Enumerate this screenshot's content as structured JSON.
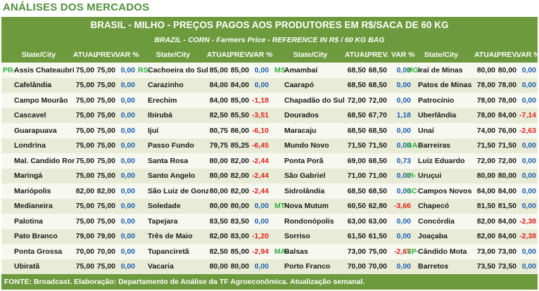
{
  "section_title": "ANÁLISES DOS MERCADOS",
  "title": "BRASIL - MILHO - PREÇOS PAGOS AOS PRODUTORES EM R$/SACA DE 60 KG",
  "subtitle": "BRAZIL - CORN - Farmers Price - REFERENCE IN R$ / 60 KG BAG",
  "headers": {
    "state_city": "State/City",
    "atual": "ATUAL",
    "prev": "PREV.",
    "var": "VAR %"
  },
  "colors": {
    "band": "#6c9a3c",
    "prefix": "#2fae3c",
    "positive": "#1f5fb0",
    "negative": "#e0211b"
  },
  "groups": [
    {
      "rows": [
        {
          "prefix": "PR-",
          "city": "Assis Chateaubriand",
          "atual": "75,00",
          "prev": "75,00",
          "var": "0,00"
        },
        {
          "prefix": "",
          "city": "Cafelândia",
          "atual": "75,00",
          "prev": "75,00",
          "var": "0,00"
        },
        {
          "prefix": "",
          "city": "Campo Mourão",
          "atual": "75,00",
          "prev": "75,00",
          "var": "0,00"
        },
        {
          "prefix": "",
          "city": "Cascavel",
          "atual": "75,00",
          "prev": "75,00",
          "var": "0,00"
        },
        {
          "prefix": "",
          "city": "Guarapuava",
          "atual": "75,00",
          "prev": "75,00",
          "var": "0,00"
        },
        {
          "prefix": "",
          "city": "Londrina",
          "atual": "75,00",
          "prev": "75,00",
          "var": "0,00"
        },
        {
          "prefix": "",
          "city": "Mal. Candido Rondon",
          "atual": "75,00",
          "prev": "75,00",
          "var": "0,00"
        },
        {
          "prefix": "",
          "city": "Maringá",
          "atual": "75,00",
          "prev": "75,00",
          "var": "0,00"
        },
        {
          "prefix": "",
          "city": "Mariópolis",
          "atual": "82,00",
          "prev": "82,00",
          "var": "0,00"
        },
        {
          "prefix": "",
          "city": "Medianeira",
          "atual": "75,00",
          "prev": "75,00",
          "var": "0,00"
        },
        {
          "prefix": "",
          "city": "Palotina",
          "atual": "75,00",
          "prev": "75,00",
          "var": "0,00"
        },
        {
          "prefix": "",
          "city": "Pato Branco",
          "atual": "79,00",
          "prev": "79,00",
          "var": "0,00"
        },
        {
          "prefix": "",
          "city": "Ponta Grossa",
          "atual": "70,00",
          "prev": "70,00",
          "var": "0,00"
        },
        {
          "prefix": "",
          "city": "Ubiratã",
          "atual": "75,00",
          "prev": "75,00",
          "var": "0,00"
        }
      ]
    },
    {
      "rows": [
        {
          "prefix": "RS-",
          "city": "Cachoeira do Sul",
          "atual": "85,00",
          "prev": "85,00",
          "var": "0,00"
        },
        {
          "prefix": "",
          "city": "Carazinho",
          "atual": "84,00",
          "prev": "84,00",
          "var": "0,00"
        },
        {
          "prefix": "",
          "city": "Erechim",
          "atual": "84,00",
          "prev": "85,00",
          "var": "-1,18"
        },
        {
          "prefix": "",
          "city": "Ibirubá",
          "atual": "82,50",
          "prev": "85,50",
          "var": "-3,51"
        },
        {
          "prefix": "",
          "city": "Ijuí",
          "atual": "80,75",
          "prev": "86,00",
          "var": "-6,10"
        },
        {
          "prefix": "",
          "city": "Passo Fundo",
          "atual": "79,75",
          "prev": "85,25",
          "var": "-6,45"
        },
        {
          "prefix": "",
          "city": "Santa Rosa",
          "atual": "80,00",
          "prev": "82,00",
          "var": "-2,44"
        },
        {
          "prefix": "",
          "city": "Santo Angelo",
          "atual": "80,00",
          "prev": "82,00",
          "var": "-2,44"
        },
        {
          "prefix": "",
          "city": "São Luiz de Gonzaga",
          "atual": "80,00",
          "prev": "82,00",
          "var": "-2,44"
        },
        {
          "prefix": "",
          "city": "Soledade",
          "atual": "80,00",
          "prev": "80,00",
          "var": "0,00"
        },
        {
          "prefix": "",
          "city": "Tapejara",
          "atual": "83,50",
          "prev": "83,50",
          "var": "0,00"
        },
        {
          "prefix": "",
          "city": "Três de Maio",
          "atual": "82,00",
          "prev": "83,00",
          "var": "-1,20"
        },
        {
          "prefix": "",
          "city": "Tupanciretã",
          "atual": "82,50",
          "prev": "85,00",
          "var": "-2,94"
        },
        {
          "prefix": "",
          "city": "Vacaria",
          "atual": "80,00",
          "prev": "80,00",
          "var": "0,00"
        }
      ]
    },
    {
      "rows": [
        {
          "prefix": "MS-",
          "city": "Amambaí",
          "atual": "68,50",
          "prev": "68,50",
          "var": "0,00"
        },
        {
          "prefix": "",
          "city": "Caarapó",
          "atual": "68,50",
          "prev": "68,50",
          "var": "0,00"
        },
        {
          "prefix": "",
          "city": "Chapadão do Sul",
          "atual": "72,00",
          "prev": "72,00",
          "var": "0,00"
        },
        {
          "prefix": "",
          "city": "Dourados",
          "atual": "68,50",
          "prev": "67,70",
          "var": "1,18"
        },
        {
          "prefix": "",
          "city": "Maracaju",
          "atual": "68,50",
          "prev": "68,50",
          "var": "0,00"
        },
        {
          "prefix": "",
          "city": "Mundo Novo",
          "atual": "71,50",
          "prev": "71,50",
          "var": "0,00"
        },
        {
          "prefix": "",
          "city": "Ponta Porã",
          "atual": "69,00",
          "prev": "68,50",
          "var": "0,73"
        },
        {
          "prefix": "",
          "city": "São Gabriel",
          "atual": "71,00",
          "prev": "71,00",
          "var": "0,00"
        },
        {
          "prefix": "",
          "city": "Sidrolândia",
          "atual": "68,50",
          "prev": "68,50",
          "var": "0,00"
        },
        {
          "prefix": "MT-",
          "city": "Nova Mutum",
          "atual": "60,50",
          "prev": "62,80",
          "var": "-3,66"
        },
        {
          "prefix": "",
          "city": "Rondonópolis",
          "atual": "63,00",
          "prev": "63,00",
          "var": "0,00"
        },
        {
          "prefix": "",
          "city": "Sorriso",
          "atual": "61,50",
          "prev": "61,50",
          "var": "0,00"
        },
        {
          "prefix": "MA-",
          "city": "Balsas",
          "atual": "73,00",
          "prev": "75,00",
          "var": "-2,67"
        },
        {
          "prefix": "",
          "city": "Porto Franco",
          "atual": "70,00",
          "prev": "70,00",
          "var": "0,00"
        }
      ]
    },
    {
      "rows": [
        {
          "prefix": "MG-",
          "city": "Iraí de Minas",
          "atual": "80,00",
          "prev": "80,00",
          "var": "0,00"
        },
        {
          "prefix": "",
          "city": "Patos de Minas",
          "atual": "78,00",
          "prev": "78,00",
          "var": "0,00"
        },
        {
          "prefix": "",
          "city": "Patrocínio",
          "atual": "78,00",
          "prev": "78,00",
          "var": "0,00"
        },
        {
          "prefix": "",
          "city": "Uberlândia",
          "atual": "78,00",
          "prev": "84,00",
          "var": "-7,14"
        },
        {
          "prefix": "",
          "city": "Unaí",
          "atual": "74,00",
          "prev": "76,00",
          "var": "-2,63"
        },
        {
          "prefix": "BA-",
          "city": "Barreiras",
          "atual": "71,50",
          "prev": "71,50",
          "var": "0,00"
        },
        {
          "prefix": "",
          "city": "Luiz Eduardo",
          "atual": "72,00",
          "prev": "72,00",
          "var": "0,00"
        },
        {
          "prefix": "PI-",
          "city": "Uruçui",
          "atual": "80,00",
          "prev": "80,00",
          "var": "0,00"
        },
        {
          "prefix": "SC-",
          "city": "Campos Novos",
          "atual": "84,00",
          "prev": "84,00",
          "var": "0,00"
        },
        {
          "prefix": "",
          "city": "Chapecó",
          "atual": "81,50",
          "prev": "81,50",
          "var": "0,00"
        },
        {
          "prefix": "",
          "city": "Concórdia",
          "atual": "82,00",
          "prev": "84,00",
          "var": "-2,38"
        },
        {
          "prefix": "",
          "city": "Joaçaba",
          "atual": "82,00",
          "prev": "84,00",
          "var": "-2,38"
        },
        {
          "prefix": "SP-",
          "city": "Cândido Mota",
          "atual": "73,00",
          "prev": "73,00",
          "var": "0,00"
        },
        {
          "prefix": "",
          "city": "Barretos",
          "atual": "73,50",
          "prev": "73,50",
          "var": "0,00"
        }
      ]
    }
  ],
  "footer": "FONTE: Broadcast. Elaboração: Departamento de Análise da TF Agroeconômica. Atualização semanal."
}
